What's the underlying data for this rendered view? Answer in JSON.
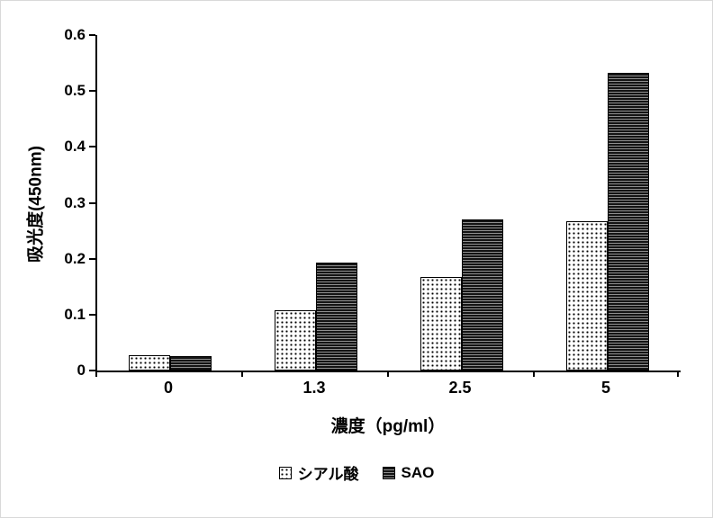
{
  "chart_data": {
    "type": "bar",
    "title": "",
    "categories": [
      "0",
      "1.3",
      "2.5",
      "5"
    ],
    "series": [
      {
        "name": "シアル酸",
        "pattern": "dots",
        "values": [
          0.027,
          0.107,
          0.167,
          0.267
        ]
      },
      {
        "name": "SAO",
        "pattern": "stripes",
        "values": [
          0.025,
          0.193,
          0.27,
          0.533
        ]
      }
    ],
    "xlabel": "濃度（pg/ml）",
    "ylabel": "吸光度(450nm)",
    "ylim": [
      0,
      0.6
    ],
    "yticks": [
      0,
      0.1,
      0.2,
      0.3,
      0.4,
      0.5,
      0.6
    ],
    "grid": false,
    "legend_position": "bottom",
    "colors": {
      "bar_border": "#000000",
      "dot_color": "#000000",
      "stripe_dark": "#141414",
      "stripe_light": "#8f8f8f"
    }
  }
}
